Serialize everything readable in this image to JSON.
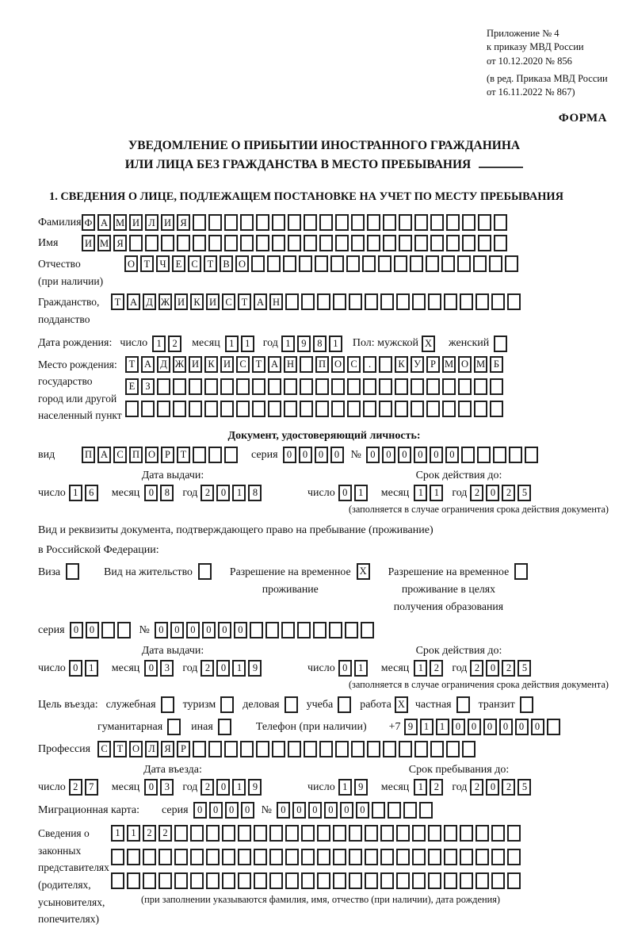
{
  "doc": {
    "header_lines": [
      "Приложение № 4",
      "к приказу МВД России",
      "от 10.12.2020 № 856",
      "(в ред. Приказа МВД России",
      "от 16.11.2022 № 867)"
    ],
    "form_label": "ФОРМА",
    "title_line1": "УВЕДОМЛЕНИЕ О ПРИБЫТИИ ИНОСТРАННОГО ГРАЖДАНИНА",
    "title_line2": "ИЛИ ЛИЦА БЕЗ ГРАЖДАНСТВА В МЕСТО ПРЕБЫВАНИЯ",
    "section1_heading": "1. СВЕДЕНИЯ О ЛИЦЕ, ПОДЛЕЖАЩЕМ ПОСТАНОВКЕ НА УЧЕТ ПО МЕСТУ ПРЕБЫВАНИЯ"
  },
  "labels": {
    "surname": "Фамилия",
    "given_name": "Имя",
    "patronymic_l1": "Отчество",
    "patronymic_l2": "(при наличии)",
    "citizenship_l1": "Гражданство,",
    "citizenship_l2": "подданство",
    "birth_date": "Дата рождения:",
    "day": "число",
    "month": "месяц",
    "year": "год",
    "sex_male": "Пол: мужской",
    "sex_female": "женский",
    "birth_place_l1": "Место рождения:",
    "birth_place_l2": "государство",
    "birth_place_l3": "город или другой",
    "birth_place_l4": "населенный пункт",
    "identity_heading": "Документ, удостоверяющий личность:",
    "doc_kind": "вид",
    "series": "серия",
    "number_sign": "№",
    "issue_date_heading": "Дата выдачи:",
    "valid_until_heading": "Срок действия до:",
    "validity_note": "(заполняется в случае ограничения срока действия документа)",
    "resid_line1": "Вид и реквизиты документа, подтверждающего право на пребывание (проживание)",
    "resid_line2": "в Российской Федерации:",
    "opt_visa": "Виза",
    "opt_residence_permit": "Вид на жительство",
    "opt_trp_l1": "Разрешение на временное",
    "opt_trp_l2": "проживание",
    "opt_trp_edu_l1": "Разрешение на временное",
    "opt_trp_edu_l2": "проживание в целях",
    "opt_trp_edu_l3": "получения образования",
    "purpose": "Цель въезда:",
    "p_official": "служебная",
    "p_tourism": "туризм",
    "p_business": "деловая",
    "p_study": "учеба",
    "p_work": "работа",
    "p_private": "частная",
    "p_transit": "транзит",
    "p_humanitarian": "гуманитарная",
    "p_other": "иная",
    "phone_label": "Телефон (при наличии)",
    "phone_prefix": "+7",
    "profession": "Профессия",
    "entry_date_heading": "Дата въезда:",
    "stay_until_heading": "Срок пребывания до:",
    "migration_card": "Миграционная карта:",
    "repr_l1": "Сведения о",
    "repr_l2": "законных",
    "repr_l3": "представителях",
    "repr_l4": "(родителях,",
    "repr_l5": "усыновителях,",
    "repr_l6": "попечителях)",
    "repr_note": "(при заполнении указываются фамилия, имя, отчество (при наличии), дата рождения)"
  },
  "fields": {
    "surname": {
      "value": "ФАМИЛИЯ",
      "len": 27
    },
    "given_name": {
      "value": "ИМЯ",
      "len": 27
    },
    "patronymic": {
      "value": "ОТЧЕСТВО",
      "len": 25
    },
    "citizenship": {
      "value": "ТАДЖИКИСТАН",
      "len": 26
    },
    "birth_day": {
      "value": "12",
      "len": 2
    },
    "birth_month": {
      "value": "11",
      "len": 2
    },
    "birth_year": {
      "value": "1981",
      "len": 4
    },
    "sex_male": {
      "value": "X",
      "len": 1
    },
    "sex_female": {
      "value": "",
      "len": 1
    },
    "birth_place_row1": {
      "value": "ТАДЖИКИСТАН ПОС. КУРМОМБ",
      "len": 24
    },
    "birth_place_row2": {
      "value": "ЕЗ",
      "len": 24
    },
    "birth_place_row3": {
      "value": "",
      "len": 24
    },
    "id_doc_kind": {
      "value": "ПАСПОРТ",
      "len": 10
    },
    "id_doc_series": {
      "value": "0000",
      "len": 4
    },
    "id_doc_number": {
      "value": "000000",
      "len": 11
    },
    "id_issue_day": {
      "value": "16",
      "len": 2
    },
    "id_issue_month": {
      "value": "08",
      "len": 2
    },
    "id_issue_year": {
      "value": "2018",
      "len": 4
    },
    "id_valid_day": {
      "value": "01",
      "len": 2
    },
    "id_valid_month": {
      "value": "11",
      "len": 2
    },
    "id_valid_year": {
      "value": "2025",
      "len": 4
    },
    "cb_visa": {
      "value": "",
      "len": 1
    },
    "cb_residence_permit": {
      "value": "",
      "len": 1
    },
    "cb_temp_residence": {
      "value": "X",
      "len": 1
    },
    "cb_temp_residence_edu": {
      "value": "",
      "len": 1
    },
    "permit_series": {
      "value": "00",
      "len": 4
    },
    "permit_number": {
      "value": "000000",
      "len": 14
    },
    "permit_issue_day": {
      "value": "01",
      "len": 2
    },
    "permit_issue_month": {
      "value": "03",
      "len": 2
    },
    "permit_issue_year": {
      "value": "2019",
      "len": 4
    },
    "permit_valid_day": {
      "value": "01",
      "len": 2
    },
    "permit_valid_month": {
      "value": "12",
      "len": 2
    },
    "permit_valid_year": {
      "value": "2025",
      "len": 4
    },
    "cb_official": {
      "value": "",
      "len": 1
    },
    "cb_tourism": {
      "value": "",
      "len": 1
    },
    "cb_business": {
      "value": "",
      "len": 1
    },
    "cb_study": {
      "value": "",
      "len": 1
    },
    "cb_work": {
      "value": "X",
      "len": 1
    },
    "cb_private": {
      "value": "",
      "len": 1
    },
    "cb_transit": {
      "value": "",
      "len": 1
    },
    "cb_humanitarian": {
      "value": "",
      "len": 1
    },
    "cb_other": {
      "value": "",
      "len": 1
    },
    "phone": {
      "value": "911000000",
      "len": 10
    },
    "profession": {
      "value": "СТОЛЯР",
      "len": 24
    },
    "entry_day": {
      "value": "27",
      "len": 2
    },
    "entry_month": {
      "value": "03",
      "len": 2
    },
    "entry_year": {
      "value": "2019",
      "len": 4
    },
    "stay_day": {
      "value": "19",
      "len": 2
    },
    "stay_month": {
      "value": "12",
      "len": 2
    },
    "stay_year": {
      "value": "2025",
      "len": 4
    },
    "migr_series": {
      "value": "0000",
      "len": 4
    },
    "migr_number": {
      "value": "000000",
      "len": 10
    },
    "repr_row1": {
      "value": "1122",
      "len": 26
    },
    "repr_row2": {
      "value": "",
      "len": 26
    },
    "repr_row3": {
      "value": "",
      "len": 26
    }
  }
}
